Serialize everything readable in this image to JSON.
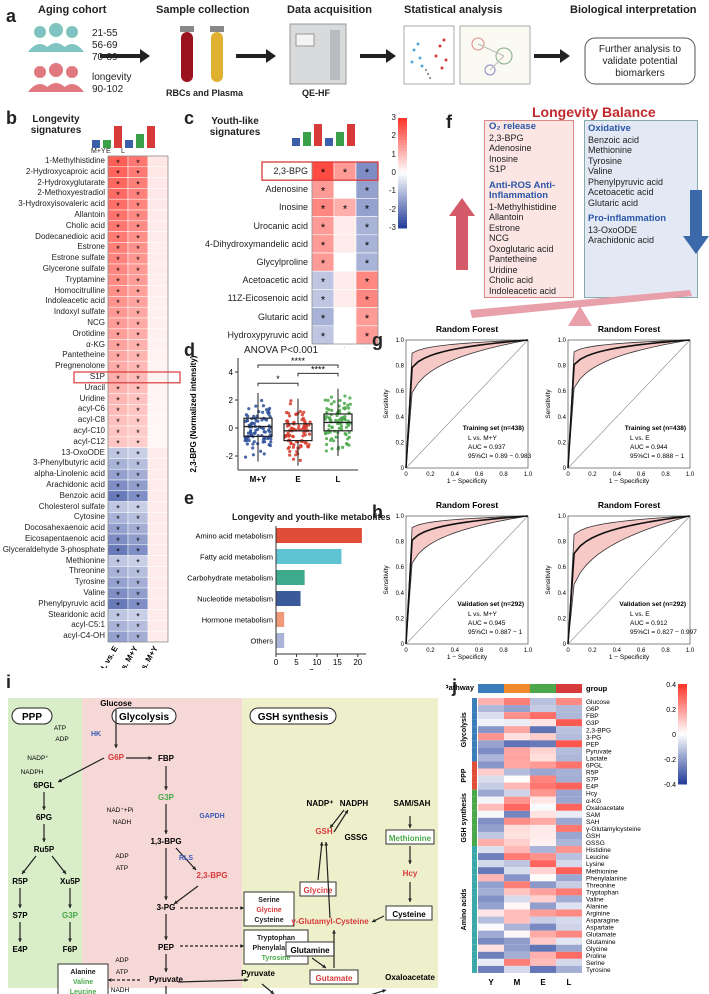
{
  "panel_labels": {
    "a": "a",
    "b": "b",
    "c": "c",
    "d": "d",
    "e": "e",
    "f": "f",
    "g": "g",
    "h": "h",
    "i": "i",
    "j": "j"
  },
  "panel_a": {
    "steps": [
      "Aging cohort",
      "Sample collection",
      "Data acquisition",
      "Statistical analysis",
      "Biological interpretation"
    ],
    "age_groups": [
      "21-55",
      "56-69",
      "70-89"
    ],
    "longevity_label": "longevity",
    "longevity_range": "90-102",
    "sample_caption": "RBCs and Plasma",
    "instrument_caption": "QE-HF",
    "interpretation_box": "Further analysis to validate potential biomarkers"
  },
  "panel_b": {
    "title": "Longevity signatures",
    "top_labels": [
      "M+Y",
      "E",
      "L",
      "M+Y",
      "E",
      "L"
    ],
    "col_labels": [
      "L vs. E",
      "L vs. M+Y",
      "E vs. M+Y"
    ],
    "rows": [
      "1-Methylhistidine",
      "2-Hydroxycaproic acid",
      "2-Hydroxyglutarate",
      "2-Methoxyestradiol",
      "3-Hydroxyisovaleric acid",
      "Allantoin",
      "Cholic acid",
      "Dodecanedioic acid",
      "Estrone",
      "Estrone sulfate",
      "Glycerone sulfate",
      "Tryptamine",
      "Homocitrulline",
      "Indoleacetic acid",
      "Indoxyl sulfate",
      "NCG",
      "Orotidine",
      "α-KG",
      "Pantetheine",
      "Pregnenolone",
      "S1P",
      "Uracil",
      "Uridine",
      "acyl-C6",
      "acyl-C8",
      "acyl-C10",
      "acyl-C12",
      "13-OxoODE",
      "3-Phenylbutyric acid",
      "alpha-Linolenic acid",
      "Arachidonic acid",
      "Benzoic acid",
      "Cholesterol sulfate",
      "Cytosine",
      "Docosahexaenoic acid",
      "Eicosapentaenoic acid",
      "Glyceraldehyde 3-phosphate",
      "Methionine",
      "Threonine",
      "Tyrosine",
      "Valine",
      "Phenylpyruvic acid",
      "Stearidonic acid",
      "acyl-C5:1",
      "acyl-C4-OH"
    ],
    "highlight_row": "S1P",
    "star": "*"
  },
  "panel_c": {
    "title": "Youth-like signatures",
    "top_labels": [
      "M+Y",
      "E",
      "L",
      "M+Y",
      "E",
      "L"
    ],
    "col_labels": [
      "L vs. E",
      "L vs. M+Y",
      "E vs. M+Y"
    ],
    "rows": [
      "2,3-BPG",
      "Adenosine",
      "Inosine",
      "Urocanic acid",
      "4-Dihydroxymandelic acid",
      "Glycylproline",
      "Acetoacetic acid",
      "11Z-Eicosenoic acid",
      "Glutaric acid",
      "Hydroxypyruvic acid"
    ],
    "star": "*",
    "colorbar_ticks": [
      "3",
      "2",
      "1",
      "0",
      "-1",
      "-2",
      "-3"
    ]
  },
  "panel_d": {
    "title": "ANOVA P<0.001",
    "ylabel": "2,3-BPG (Normalized intensity)",
    "sig_marks": [
      "*",
      "****",
      "****"
    ],
    "chart_data": {
      "type": "box",
      "categories": [
        "M+Y",
        "E",
        "L"
      ],
      "medians": [
        0.1,
        -0.2,
        0.4
      ],
      "q1": [
        -0.6,
        -0.9,
        -0.2
      ],
      "q3": [
        0.7,
        0.3,
        1.0
      ],
      "yticks": [
        "4",
        "2",
        "0",
        "-2"
      ],
      "ylim": [
        -3,
        5
      ],
      "colors": [
        "#2c4f9a",
        "#d33a2c",
        "#4aa84a"
      ]
    }
  },
  "panel_e": {
    "title": "Longevity and youth-like metabolites",
    "xlabel": "Counts",
    "chart_data": {
      "type": "bar",
      "categories": [
        "Amino acid metabolism",
        "Fatty acid  metabolism",
        "Carbohydrate metabolism",
        "Nucleotide metabolism",
        "Hormone metabolism",
        "Others"
      ],
      "values": [
        21,
        16,
        7,
        6,
        2,
        2
      ],
      "xticks": [
        "0",
        "5",
        "10",
        "15",
        "20"
      ],
      "xlim": [
        0,
        22
      ],
      "colors": [
        "#e04e3a",
        "#5ec4d4",
        "#3eaa8c",
        "#3a5a9a",
        "#f09a7a",
        "#aab4d8"
      ]
    }
  },
  "panel_f": {
    "title": "Longevity Balance",
    "left_groups": [
      {
        "head": "O₂ release",
        "items": [
          "2,3-BPG",
          "Adenosine",
          "Inosine",
          "S1P"
        ]
      },
      {
        "head": "Anti-ROS Anti-Inflammation",
        "items": [
          "1-Methylhistidine",
          "Allantoin",
          "Estrone",
          "NCG",
          "Oxoglutaric acid",
          "Pantetheine",
          "Uridine",
          "Cholic acid",
          "Indoleacetic acid"
        ]
      }
    ],
    "right_groups": [
      {
        "head": "Oxidative",
        "items": [
          "Benzoic acid",
          "Methionine",
          "Tyrosine",
          "Valine",
          "Phenylpyruvic acid",
          "Acetoacetic acid",
          "Glutaric acid"
        ]
      },
      {
        "head": "Pro-inflammation",
        "items": [
          "13-OxoODE",
          "Arachidonic acid"
        ]
      }
    ]
  },
  "panel_g": {
    "plots": [
      {
        "title": "Random Forest",
        "set": "Training set (n=438)",
        "cmp": "L vs. M+Y",
        "auc": "AUC = 0.937",
        "ci": "95%CI = 0.89 − 0.983"
      },
      {
        "title": "Random Forest",
        "set": "Training set (n=438)",
        "cmp": "L vs. E",
        "auc": "AUC = 0.944",
        "ci": "95%CI = 0.888 − 1"
      }
    ],
    "xlabel": "1 − Specificity",
    "ylabel": "Sensitivity",
    "ticks": [
      "0",
      "0.2",
      "0.4",
      "0.6",
      "0.8",
      "1.0"
    ]
  },
  "panel_h": {
    "plots": [
      {
        "title": "Random Forest",
        "set": "Validation set (n=292)",
        "cmp": "L vs. M+Y",
        "auc": "AUC = 0.945",
        "ci": "95%CI = 0.887 − 1"
      },
      {
        "title": "Random Forest",
        "set": "Validation set (n=292)",
        "cmp": "L vs. E",
        "auc": "AUC = 0.912",
        "ci": "95%CI = 0.827 − 0.997"
      }
    ],
    "xlabel": "1 − Specificity",
    "ylabel": "Sensitivity",
    "ticks": [
      "0",
      "0.2",
      "0.4",
      "0.6",
      "0.8",
      "1.0"
    ]
  },
  "panel_i": {
    "sections": [
      "PPP",
      "Glycolysis",
      "GSH synthesis"
    ],
    "ppp": {
      "glucose": "Glucose",
      "atp": "ATP",
      "adp": "ADP",
      "hk": "HK",
      "nadp": "NADP⁺",
      "nadph": "NADPH",
      "g6p": "G6P",
      "pgl": "6PGL",
      "pg": "6PG",
      "ru5p": "Ru5P",
      "r5p": "R5P",
      "xu5p": "Xu5P",
      "s7p": "S7P",
      "g3p": "G3P",
      "e4p": "E4P",
      "f6p": "F6P"
    },
    "glycolysis": {
      "fbp": "FBP",
      "g3p": "G3P",
      "nadpi": "NAD⁺+Pi",
      "nadh": "NADH",
      "gapdh": "GAPDH",
      "bpg13": "1,3-BPG",
      "bpg23": "2,3-BPG",
      "rls": "RLS",
      "adp": "ADP",
      "atp": "ATP",
      "pg3": "3-PG",
      "pep": "PEP",
      "pyruvate": "Pyruvate",
      "lactate": "Lactate",
      "adp2": "ADP",
      "atp2": "ATP",
      "nadh2": "NADH",
      "nad2": "NAD⁺"
    },
    "aa_box1": [
      "Serine",
      "Glycine",
      "Cysteine"
    ],
    "aa_box2": [
      "Tryptophan",
      "Phenylalanine",
      "Tyrosine"
    ],
    "aa_box3": [
      "Alanine",
      "Valine",
      "Leucine",
      "Isoleucine"
    ],
    "gsh": {
      "nadp": "NADP⁺",
      "nadph": "NADPH",
      "samsah": "SAM/SAH",
      "gsh": "GSH",
      "gssg": "GSSG",
      "methionine": "Methionine",
      "glycine": "Glycine",
      "gglu": "γ-Glutamyl-Cysteine",
      "hcy": "Hcy",
      "glutamine": "Glutamine",
      "cysteine": "Cysteine",
      "pyruvate": "Pyruvate",
      "glutamate": "Gutamate",
      "oxaloacetate": "Oxaloacetate",
      "alanine": "Alanine",
      "akg": "α-KG",
      "aspartate": "Aspartate"
    }
  },
  "panel_j": {
    "pathway_label": "Pathway",
    "group_label": "group",
    "col_labels": [
      "Y",
      "M",
      "E",
      "L"
    ],
    "col_colors": [
      "#3a7db8",
      "#f08a2c",
      "#4aa84a",
      "#d63a3a"
    ],
    "section_labels": [
      "Glycolysis",
      "PPP",
      "GSH synthesis",
      "Amino acids"
    ],
    "section_colors": [
      "#3a7db8",
      "#e04e3a",
      "#4aa84a",
      "#3aa8a8"
    ],
    "rows": [
      "Glucose",
      "G6P",
      "FBP",
      "G3P",
      "2,3-BPG",
      "3-PG",
      "PEP",
      "Pyruvate",
      "Lactate",
      "6PGL",
      "R5P",
      "S7P",
      "E4P",
      "Hcy",
      "α-KG",
      "Oxaloacetate",
      "SAM",
      "SAH",
      "γ-Glutamylcysteine",
      "GSH",
      "GSSG",
      "Histidine",
      "Leucine",
      "Lysine",
      "Methionine",
      "Phenylalanine",
      "Threonine",
      "Tryptophan",
      "Valine",
      "Alanine",
      "Arginine",
      "Asparagine",
      "Aspartate",
      "Glutamate",
      "Glutamine",
      "Glycine",
      "Proline",
      "Serine",
      "Tyrosine"
    ],
    "row_sections": [
      0,
      0,
      0,
      0,
      0,
      0,
      0,
      0,
      0,
      1,
      1,
      1,
      1,
      2,
      2,
      2,
      2,
      2,
      2,
      2,
      2,
      3,
      3,
      3,
      3,
      3,
      3,
      3,
      3,
      3,
      3,
      3,
      3,
      3,
      3,
      3,
      3,
      3,
      3
    ],
    "colorbar_ticks": [
      "0.4",
      "0.2",
      "0",
      "-0.2",
      "-0.4"
    ]
  }
}
